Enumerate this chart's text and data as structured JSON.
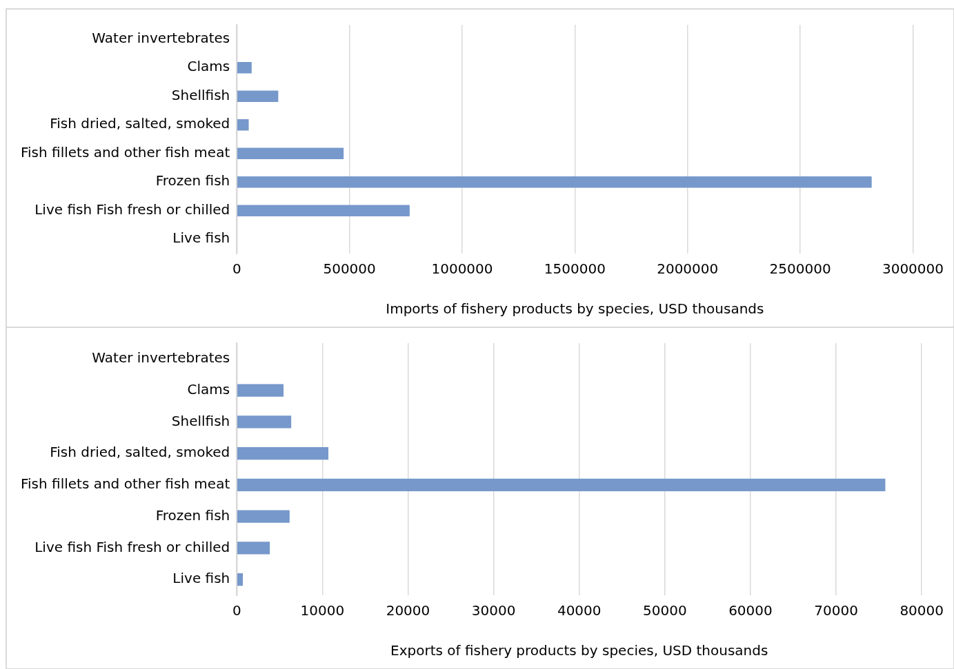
{
  "chart_data": [
    {
      "type": "bar",
      "orientation": "horizontal",
      "xlabel": "Imports of fishery products by species, USD thousands",
      "categories": [
        "Water invertebrates",
        "Clams",
        "Shellfish",
        "Fish dried, salted, smoked",
        "Fish fillets and other fish meat",
        "Frozen fish",
        "Live fish Fish fresh or chilled",
        "Live fish"
      ],
      "values": [
        0,
        66000,
        184000,
        53000,
        474000,
        2817000,
        767000,
        0
      ],
      "color": "#7698cb",
      "xlim": [
        0,
        3000000
      ],
      "xticks": [
        0,
        500000,
        1000000,
        1500000,
        2000000,
        2500000,
        3000000
      ],
      "grid": "x"
    },
    {
      "type": "bar",
      "orientation": "horizontal",
      "xlabel": "Exports of fishery products by species, USD thousands",
      "categories": [
        "Water invertebrates",
        "Clams",
        "Shellfish",
        "Fish dried, salted, smoked",
        "Fish fillets and other fish meat",
        "Frozen fish",
        "Live fish Fish fresh or chilled",
        "Live fish"
      ],
      "values": [
        0,
        5460,
        6360,
        10700,
        75750,
        6170,
        3860,
        710
      ],
      "color": "#7698cb",
      "xlim": [
        0,
        80000
      ],
      "xticks": [
        0,
        10000,
        20000,
        30000,
        40000,
        50000,
        60000,
        70000,
        80000
      ],
      "grid": "x"
    }
  ]
}
